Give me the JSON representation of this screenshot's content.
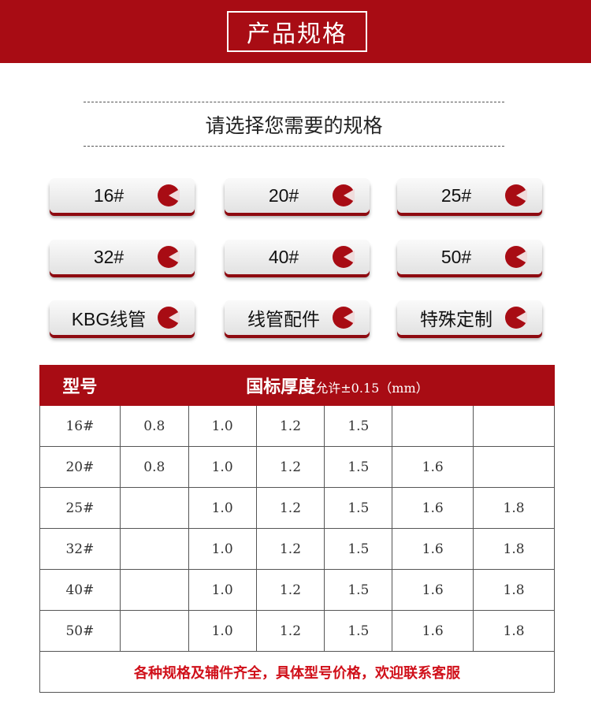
{
  "header": {
    "title": "产品规格"
  },
  "subtitle": "请选择您需要的规格",
  "buttons": [
    "16#",
    "20#",
    "25#",
    "32#",
    "40#",
    "50#",
    "KBG线管",
    "线管配件",
    "特殊定制"
  ],
  "icon": "pie-chart-icon",
  "colors": {
    "brand": "#a80c14",
    "footer_text": "#d0101a"
  },
  "table": {
    "headers": {
      "model": "型号",
      "thickness": "国标厚度",
      "tolerance": "允许±0.15（mm）"
    },
    "rows": [
      {
        "model": "16#",
        "values": [
          "0.8",
          "1.0",
          "1.2",
          "1.5",
          "",
          ""
        ]
      },
      {
        "model": "20#",
        "values": [
          "0.8",
          "1.0",
          "1.2",
          "1.5",
          "1.6",
          ""
        ]
      },
      {
        "model": "25#",
        "values": [
          "",
          "1.0",
          "1.2",
          "1.5",
          "1.6",
          "1.8"
        ]
      },
      {
        "model": "32#",
        "values": [
          "",
          "1.0",
          "1.2",
          "1.5",
          "1.6",
          "1.8"
        ]
      },
      {
        "model": "40#",
        "values": [
          "",
          "1.0",
          "1.2",
          "1.5",
          "1.6",
          "1.8"
        ]
      },
      {
        "model": "50#",
        "values": [
          "",
          "1.0",
          "1.2",
          "1.5",
          "1.6",
          "1.8"
        ]
      }
    ],
    "footer": "各种规格及辅件齐全，具体型号价格，欢迎联系客服"
  }
}
